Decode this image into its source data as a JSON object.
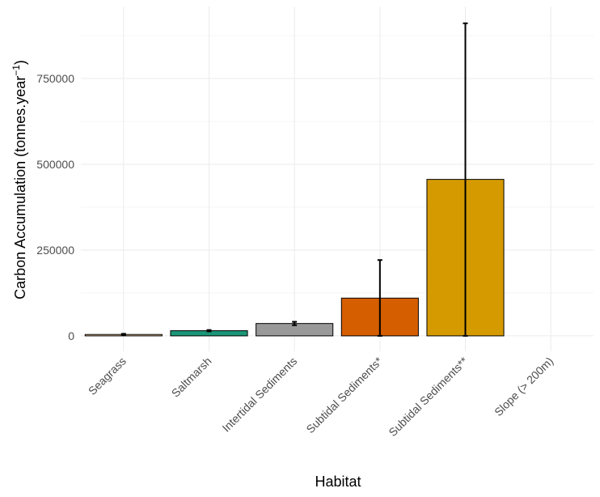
{
  "chart_data": {
    "type": "bar",
    "xlabel": "Habitat",
    "ylabel": "Carbon Accumulation (tonnes.year",
    "ylabel_sup": "−1",
    "ylabel_close": ")",
    "categories": [
      "Seagrass",
      "Saltmarsh",
      "Intertidal Sediments",
      "Subtidal Sediments*",
      "Subtidal Sediments**",
      "Slope (> 200m)"
    ],
    "values": [
      4000,
      15000,
      36000,
      110000,
      456000,
      null
    ],
    "error_low": [
      2000,
      13000,
      31000,
      0,
      0,
      null
    ],
    "error_high": [
      6000,
      17000,
      41000,
      221000,
      911000,
      null
    ],
    "colors": [
      "#f2d19a",
      "#1a9778",
      "#999999",
      "#d55e00",
      "#d59a00",
      "#000000"
    ],
    "y_ticks": [
      0,
      250000,
      500000,
      750000
    ],
    "y_tick_labels": [
      "0",
      "250000",
      "500000",
      "750000"
    ],
    "ylim": [
      -45000,
      960000
    ],
    "grid": true
  }
}
